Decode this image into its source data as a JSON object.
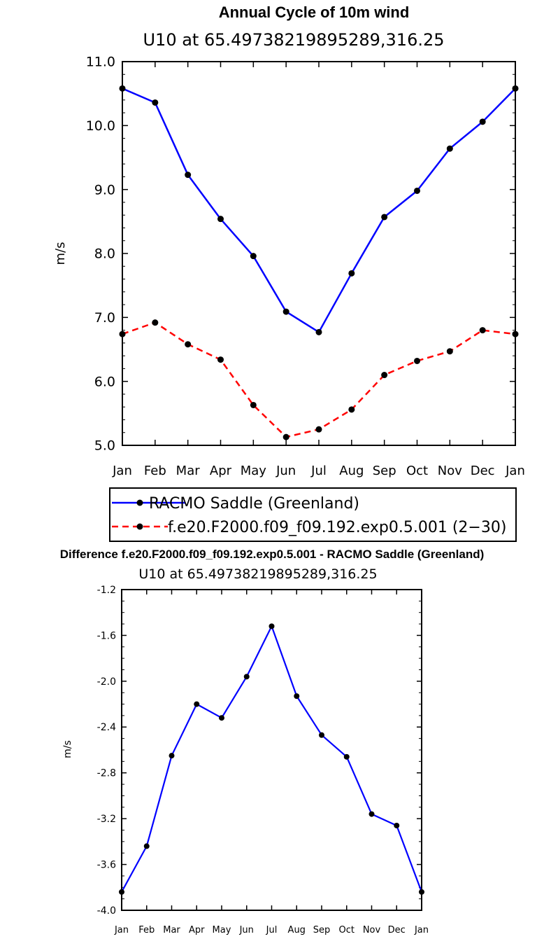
{
  "chart_data": [
    {
      "type": "line",
      "title": "Annual Cycle of 10m wind",
      "subtitle": "U10  at  65.49738219895289,316.25",
      "xlabel": "",
      "ylabel": "m/s",
      "ylim": [
        5.0,
        11.0
      ],
      "yticks": [
        "5.0",
        "6.0",
        "7.0",
        "8.0",
        "9.0",
        "10.0",
        "11.0"
      ],
      "categories": [
        "Jan",
        "Feb",
        "Mar",
        "Apr",
        "May",
        "Jun",
        "Jul",
        "Aug",
        "Sep",
        "Oct",
        "Nov",
        "Dec",
        "Jan"
      ],
      "series": [
        {
          "name": "RACMO Saddle (Greenland)",
          "color": "#0000ff",
          "dash": "solid",
          "values": [
            10.58,
            10.36,
            9.23,
            8.54,
            7.96,
            7.09,
            6.77,
            7.69,
            8.57,
            8.98,
            9.64,
            10.06,
            10.58
          ]
        },
        {
          "name": "f.e20.F2000.f09_f09.192.exp0.5.001 (2−30)",
          "color": "#ff0000",
          "dash": "dashed",
          "values": [
            6.74,
            6.92,
            6.58,
            6.34,
            5.63,
            5.13,
            5.25,
            5.56,
            6.1,
            6.32,
            6.47,
            6.8,
            6.74
          ]
        }
      ]
    },
    {
      "type": "line",
      "title": "Difference f.e20.F2000.f09_f09.192.exp0.5.001 - RACMO Saddle (Greenland)",
      "subtitle": "U10  at  65.49738219895289,316.25",
      "xlabel": "",
      "ylabel": "m/s",
      "ylim": [
        -4.0,
        -1.2
      ],
      "yticks": [
        "-4.0",
        "-3.6",
        "-3.2",
        "-2.8",
        "-2.4",
        "-2.0",
        "-1.6",
        "-1.2"
      ],
      "categories": [
        "Jan",
        "Feb",
        "Mar",
        "Apr",
        "May",
        "Jun",
        "Jul",
        "Aug",
        "Sep",
        "Oct",
        "Nov",
        "Dec",
        "Jan"
      ],
      "series": [
        {
          "name": "Difference",
          "color": "#0000ff",
          "dash": "solid",
          "values": [
            -3.84,
            -3.44,
            -2.65,
            -2.2,
            -2.32,
            -1.96,
            -1.52,
            -2.13,
            -2.47,
            -2.66,
            -3.16,
            -3.26,
            -3.84
          ]
        }
      ]
    }
  ]
}
